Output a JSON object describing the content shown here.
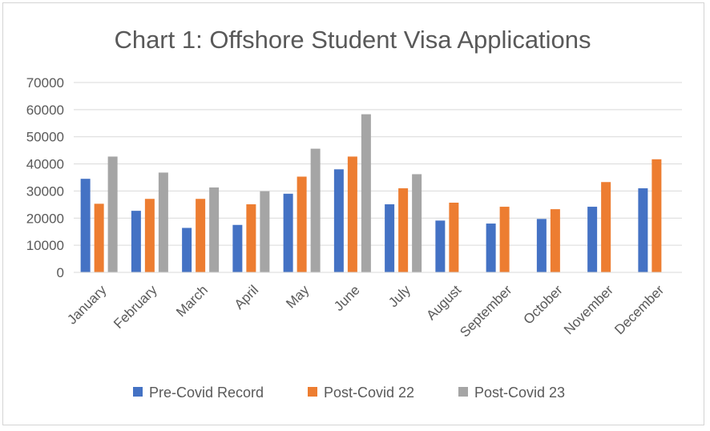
{
  "chart_data": {
    "type": "bar",
    "title": "Chart 1: Offshore Student Visa Applications",
    "xlabel": "",
    "ylabel": "",
    "ylim": [
      0,
      70000
    ],
    "yticks": [
      0,
      10000,
      20000,
      30000,
      40000,
      50000,
      60000,
      70000
    ],
    "ytick_labels": [
      "0",
      "10000",
      "20000",
      "30000",
      "40000",
      "50000",
      "60000",
      "70000"
    ],
    "grid": true,
    "legend_position": "bottom",
    "categories": [
      "January",
      "February",
      "March",
      "April",
      "May",
      "June",
      "July",
      "August",
      "September",
      "October",
      "November",
      "December"
    ],
    "series": [
      {
        "name": "Pre-Covid Record",
        "color": "#4472c4",
        "values": [
          34500,
          22700,
          16400,
          17500,
          29000,
          38000,
          25100,
          19100,
          18000,
          19700,
          24200,
          31000
        ]
      },
      {
        "name": "Post-Covid 22",
        "color": "#ed7d31",
        "values": [
          25300,
          27100,
          27100,
          25100,
          35300,
          42700,
          31000,
          25700,
          24200,
          23300,
          33300,
          41700
        ]
      },
      {
        "name": "Post-Covid 23",
        "color": "#a5a5a5",
        "values": [
          42700,
          36800,
          31300,
          29900,
          45600,
          58300,
          36200,
          null,
          null,
          null,
          null,
          null
        ]
      }
    ]
  }
}
